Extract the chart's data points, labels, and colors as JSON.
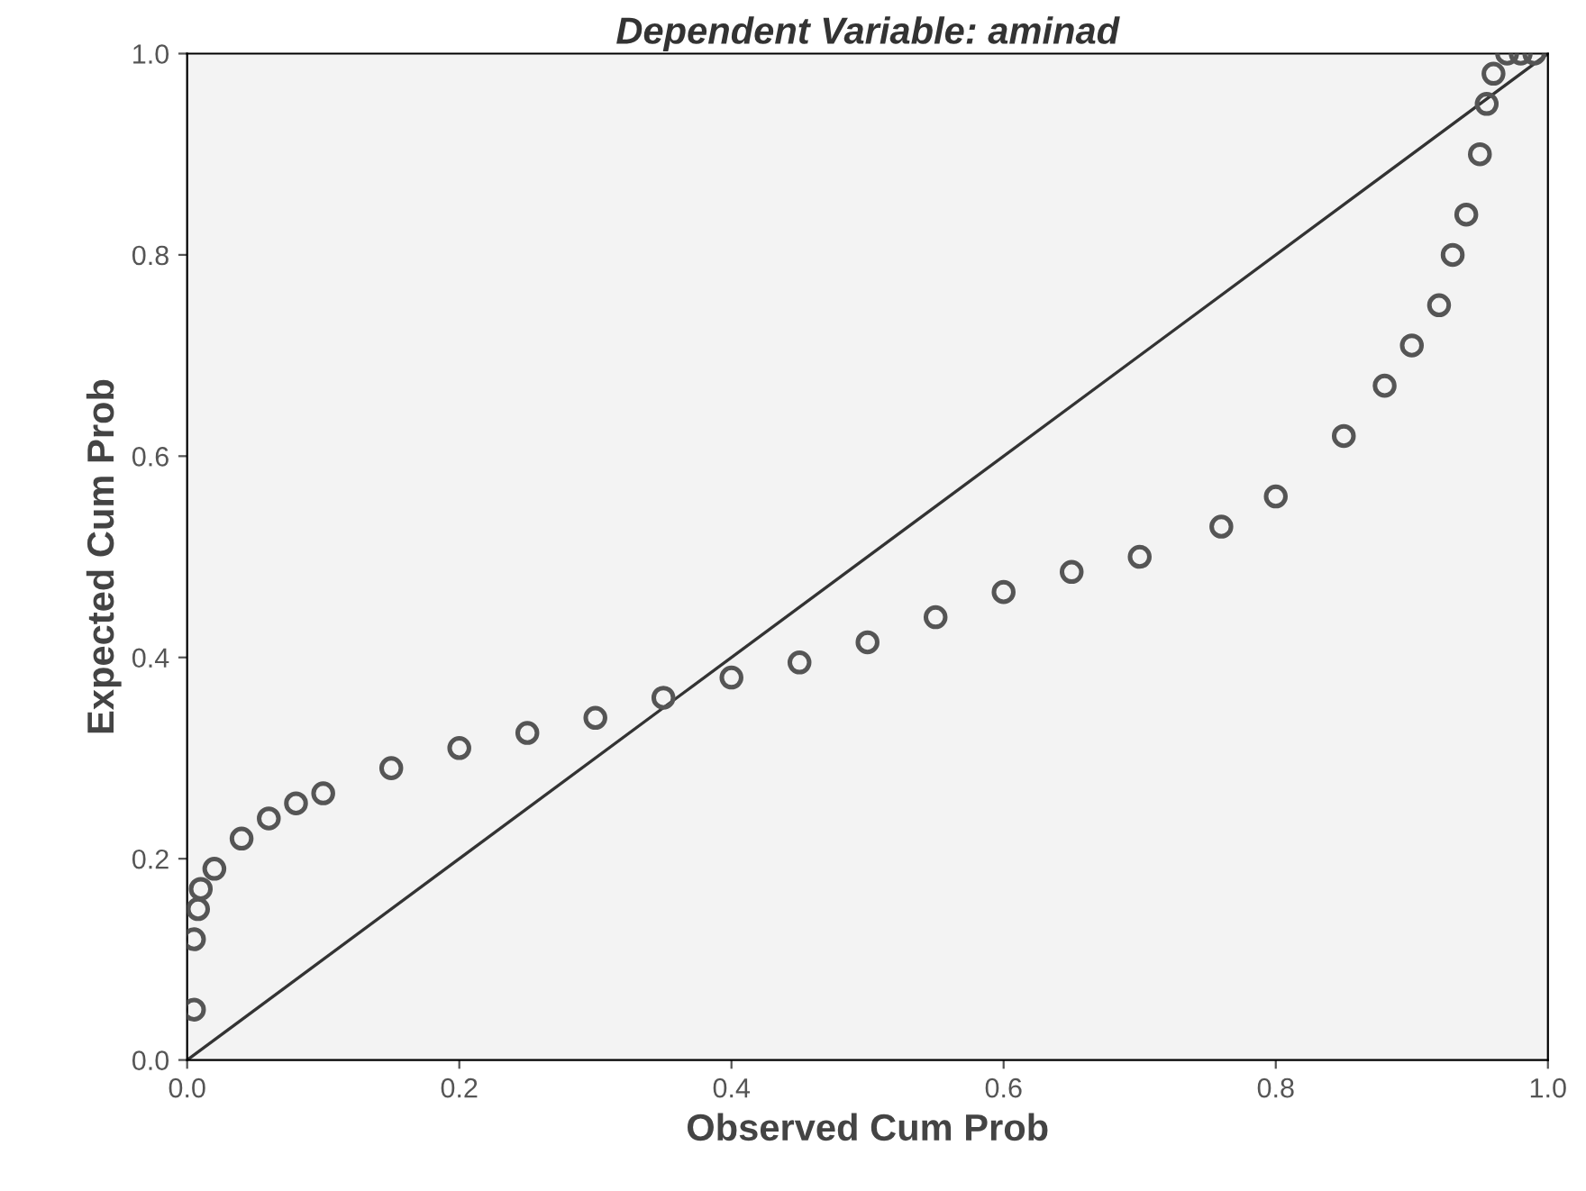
{
  "chart_data": {
    "type": "scatter",
    "title": "Dependent Variable: aminad",
    "xlabel": "Observed Cum Prob",
    "ylabel": "Expected Cum Prob",
    "xlim": [
      0,
      1
    ],
    "ylim": [
      0,
      1
    ],
    "xticks": [
      {
        "value": 0,
        "label": "0.0"
      },
      {
        "value": 0.2,
        "label": "0.2"
      },
      {
        "value": 0.4,
        "label": "0.4"
      },
      {
        "value": 0.6,
        "label": "0.6"
      },
      {
        "value": 0.8,
        "label": "0.8"
      },
      {
        "value": 1,
        "label": "1.0"
      }
    ],
    "yticks": [
      {
        "value": 0,
        "label": "0.0"
      },
      {
        "value": 0.2,
        "label": "0.2"
      },
      {
        "value": 0.4,
        "label": "0.4"
      },
      {
        "value": 0.6,
        "label": "0.6"
      },
      {
        "value": 0.8,
        "label": "0.8"
      },
      {
        "value": 1,
        "label": "1.0"
      }
    ],
    "grid": false,
    "legend": false,
    "series": [
      {
        "marker": "circle",
        "color": "#555555",
        "x": [
          0.005,
          0.005,
          0.008,
          0.01,
          0.02,
          0.04,
          0.06,
          0.08,
          0.1,
          0.15,
          0.2,
          0.25,
          0.3,
          0.35,
          0.4,
          0.45,
          0.5,
          0.55,
          0.6,
          0.65,
          0.7,
          0.76,
          0.8,
          0.85,
          0.88,
          0.9,
          0.92,
          0.93,
          0.94,
          0.95,
          0.955,
          0.96,
          0.97,
          0.98,
          0.99
        ],
        "values": [
          0.05,
          0.12,
          0.15,
          0.17,
          0.19,
          0.22,
          0.24,
          0.255,
          0.265,
          0.29,
          0.31,
          0.325,
          0.34,
          0.36,
          0.38,
          0.395,
          0.415,
          0.44,
          0.465,
          0.485,
          0.5,
          0.53,
          0.56,
          0.62,
          0.67,
          0.71,
          0.75,
          0.8,
          0.84,
          0.9,
          0.95,
          0.98,
          1.0,
          1.0,
          1.0
        ]
      },
      {
        "type": "line",
        "marker": "none",
        "color": "#333333",
        "x": [
          0,
          1
        ],
        "values": [
          0,
          1
        ]
      }
    ]
  }
}
